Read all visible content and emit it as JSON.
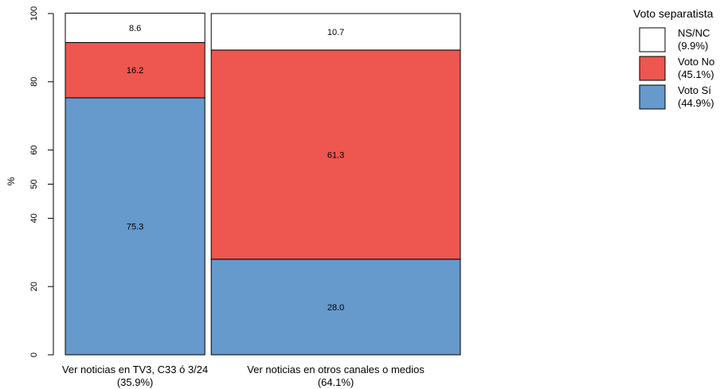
{
  "chart_data": {
    "type": "bar",
    "subtype": "stacked-percent-mosaic",
    "ylabel": "%",
    "ylim": [
      0,
      100
    ],
    "yticks": [
      "0",
      "20",
      "40",
      "50",
      "60",
      "80",
      "100"
    ],
    "ytick_values": [
      0,
      20,
      40,
      50,
      60,
      80,
      100
    ],
    "grid": false,
    "legend_position": "top-right",
    "categories": [
      {
        "line1": "Ver noticias en TV3, C33 ó 3/24",
        "line2": "(35.9%)",
        "share": 35.9
      },
      {
        "line1": "Ver noticias en otros canales o medios",
        "line2": "(64.1%)",
        "share": 64.1
      }
    ],
    "series": [
      {
        "name": "Voto Sí",
        "legend_line1": "Voto Sí",
        "legend_line2": "(44.9%)",
        "color": "#6699cc",
        "values": [
          75.3,
          28.0
        ],
        "labels": [
          "75.3",
          "28.0"
        ]
      },
      {
        "name": "Voto No",
        "legend_line1": "Voto No",
        "legend_line2": "(45.1%)",
        "color": "#ee5650",
        "values": [
          16.2,
          61.3
        ],
        "labels": [
          "16.2",
          "61.3"
        ]
      },
      {
        "name": "NS/NC",
        "legend_line1": "NS/NC",
        "legend_line2": "(9.9%)",
        "color": "#ffffff",
        "values": [
          8.6,
          10.7
        ],
        "labels": [
          "8.6",
          "10.7"
        ]
      }
    ],
    "legend_title": "Voto separatista"
  }
}
